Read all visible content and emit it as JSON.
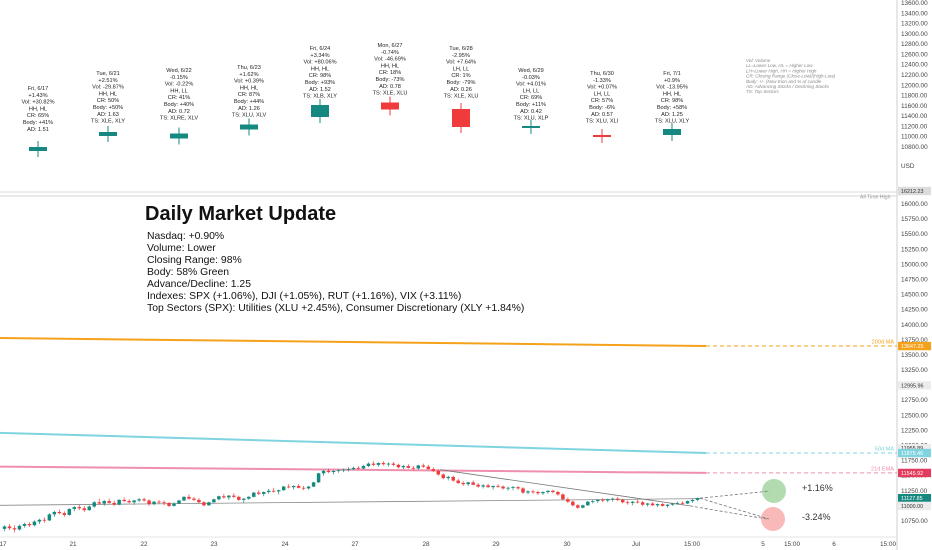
{
  "colors": {
    "up": "#15897f",
    "down": "#ef3b3b",
    "ma200": "#f5a21b",
    "ma50": "#7fd4e0",
    "ema21": "#ef8fae",
    "ath": "#b9b9b9",
    "pct_up_circle": "#9fd39b",
    "pct_down_circle": "#f7a8a8"
  },
  "icons": {
    "note": "none"
  },
  "card_days": [
    {
      "lines": [
        "Fri, 6/17",
        "+1.43%",
        "Vol: +30.82%",
        "HH, HL",
        "CR: 65%",
        "Body: +41%",
        "AD: 1.51"
      ],
      "dir": "up"
    },
    {
      "lines": [
        "Tue, 6/21",
        "+2.51%",
        "Vol: -29.87%",
        "HH, HL",
        "CR: 50%",
        "Body: +50%",
        "AD: 1.63",
        "TS: XLE, XLY"
      ],
      "dir": "up"
    },
    {
      "lines": [
        "Wed, 6/22",
        "-0.15%",
        "Vol: -0.22%",
        "HH, LL",
        "CR: 41%",
        "Body: +40%",
        "AD: 0.72",
        "TS: XLRE, XLV"
      ],
      "dir": "up"
    },
    {
      "lines": [
        "Thu, 6/23",
        "+1.62%",
        "Vol: +0.39%",
        "HH, HL",
        "CR: 87%",
        "Body: +44%",
        "AD: 1.26",
        "TS: XLU, XLV"
      ],
      "dir": "up"
    },
    {
      "lines": [
        "Fri, 6/24",
        "+3.34%",
        "Vol: +80.06%",
        "HH, HL",
        "CR: 98%",
        "Body: +93%",
        "AD: 1.52",
        "TS: XLB, XLY"
      ],
      "dir": "up"
    },
    {
      "lines": [
        "Mon, 6/27",
        "-0.74%",
        "Vol: -46.69%",
        "HH, HL",
        "CR: 18%",
        "Body: -73%",
        "AD: 0.78",
        "TS: XLE, XLU"
      ],
      "dir": "down"
    },
    {
      "lines": [
        "Tue, 6/28",
        "-2.95%",
        "Vol: +7.64%",
        "LH, LL",
        "CR: 1%",
        "Body: -79%",
        "AD: 0.26",
        "TS: XLE, XLU"
      ],
      "dir": "down"
    },
    {
      "lines": [
        "Wed, 6/29",
        "-0.03%",
        "Vol: +4.01%",
        "LH, LL",
        "CR: 69%",
        "Body: +11%",
        "AD: 0.42",
        "TS: XLU, XLP"
      ],
      "dir": "up"
    },
    {
      "lines": [
        "Thu, 6/30",
        "-1.33%",
        "Vol: +0.07%",
        "LH, LL",
        "CR: 57%",
        "Body: -6%",
        "AD: 0.57",
        "TS: XLU, XLI"
      ],
      "dir": "down"
    },
    {
      "lines": [
        "Fri, 7/1",
        "+0.9%",
        "Vol: -13.95%",
        "HH, HL",
        "CR: 98%",
        "Body: +58%",
        "AD: 1.25",
        "TS: XLU, XLY"
      ],
      "dir": "up"
    }
  ],
  "legend_lines": [
    "Vol: Volume",
    "LL=Lower Low, HL = Higher Low",
    "LH=Lower High, HH = Higher High",
    "CR: Closing Range (Close-Low)/(High-Low)",
    "Body: +/- (Now Eion and % of candle",
    "AD: Advancing Stocks / Declining Stocks",
    "TS: Top Sectors"
  ],
  "update": {
    "title": "Daily Market Update",
    "lines": [
      "Nasdaq: +0.90%",
      "Volume: Lower",
      "Closing Range: 98%",
      "Body: 58% Green",
      "Advance/Decline: 1.25",
      "Indexes: SPX (+1.06%), DJI (+1.05%), RUT (+1.16%), VIX (+3.11%)",
      "Top Sectors (SPX): Utilities (XLU +2.45%), Consumer Discretionary (XLY +1.84%)"
    ]
  },
  "ath_label": "All Time High",
  "currency": "USD",
  "ma_labels": {
    "ma200": "200d MA",
    "ma50": "50d MA",
    "ema21": "21d EMA"
  },
  "projections": {
    "up": "+1.16%",
    "down": "-3.24%"
  },
  "chart_data": {
    "type": "line",
    "y_axis_ticks": [
      10750,
      11000,
      11250,
      11500,
      11750,
      12000,
      12250,
      12500,
      12750,
      13000,
      13250,
      13500,
      13750,
      14000,
      14250,
      14500,
      14750,
      15000,
      15250,
      15500,
      15750,
      16000,
      16212.23
    ],
    "y_axis_upper_ticks": [
      10800,
      11000,
      11200,
      11400,
      11600,
      11800,
      12000,
      12200,
      12400,
      12600,
      12800,
      13000,
      13200,
      13400,
      13600
    ],
    "x_axis_labels": [
      "17",
      "21",
      "22",
      "23",
      "24",
      "27",
      "28",
      "29",
      "30",
      "Jul",
      "15:00",
      "5",
      "15:00",
      "6",
      "15:00"
    ],
    "price_tags": [
      {
        "label": "16212.23",
        "value": 16212.23,
        "type": "ath"
      },
      {
        "label": "13647.25",
        "value": 13647.25,
        "type": "ma200"
      },
      {
        "label": "12995.96",
        "value": 12995.96,
        "type": "level"
      },
      {
        "label": "11955.89",
        "value": 11955.89,
        "type": "level"
      },
      {
        "label": "11875.46",
        "value": 11875.46,
        "type": "ma50"
      },
      {
        "label": "11545.92",
        "value": 11545.92,
        "type": "ema21"
      },
      {
        "label": "11127.85",
        "value": 11127.85,
        "type": "close"
      },
      {
        "label": "11000.00",
        "value": 11000.0,
        "type": "level"
      }
    ],
    "ma200": [
      13780,
      13648
    ],
    "ma50": [
      12210,
      11876
    ],
    "ema21": [
      11650,
      11546
    ],
    "ohlc": [
      [
        10620,
        10680,
        10580,
        10660
      ],
      [
        10660,
        10700,
        10600,
        10630
      ],
      [
        10630,
        10680,
        10560,
        10610
      ],
      [
        10610,
        10690,
        10590,
        10670
      ],
      [
        10670,
        10720,
        10640,
        10700
      ],
      [
        10700,
        10730,
        10650,
        10680
      ],
      [
        10680,
        10760,
        10660,
        10740
      ],
      [
        10740,
        10790,
        10700,
        10770
      ],
      [
        10770,
        10810,
        10720,
        10760
      ],
      [
        10760,
        10880,
        10750,
        10860
      ],
      [
        10860,
        10920,
        10820,
        10900
      ],
      [
        10900,
        10940,
        10860,
        10880
      ],
      [
        10880,
        10910,
        10820,
        10850
      ],
      [
        10850,
        10960,
        10840,
        10950
      ],
      [
        10950,
        11000,
        10910,
        10980
      ],
      [
        10980,
        11020,
        10930,
        10960
      ],
      [
        10960,
        11000,
        10900,
        10930
      ],
      [
        10930,
        11010,
        10920,
        10990
      ],
      [
        10990,
        11080,
        10970,
        11060
      ],
      [
        11060,
        11120,
        11020,
        11040
      ],
      [
        11040,
        11100,
        11000,
        11080
      ],
      [
        11080,
        11120,
        11040,
        11050
      ],
      [
        11050,
        11090,
        11000,
        11020
      ],
      [
        11020,
        11110,
        11010,
        11100
      ],
      [
        11100,
        11140,
        11060,
        11080
      ],
      [
        11080,
        11110,
        11040,
        11060
      ],
      [
        11060,
        11100,
        11020,
        11090
      ],
      [
        11090,
        11130,
        11060,
        11110
      ],
      [
        11110,
        11140,
        11070,
        11090
      ],
      [
        11090,
        11110,
        11000,
        11030
      ],
      [
        11030,
        11080,
        11010,
        11070
      ],
      [
        11070,
        11100,
        11040,
        11060
      ],
      [
        11060,
        11090,
        11010,
        11050
      ],
      [
        11050,
        11060,
        10980,
        11000
      ],
      [
        11000,
        11060,
        10990,
        11040
      ],
      [
        11040,
        11100,
        11030,
        11090
      ],
      [
        11090,
        11160,
        11080,
        11150
      ],
      [
        11150,
        11190,
        11100,
        11120
      ],
      [
        11120,
        11150,
        11080,
        11100
      ],
      [
        11100,
        11130,
        11040,
        11060
      ],
      [
        11060,
        11080,
        10990,
        11010
      ],
      [
        11010,
        11070,
        11000,
        11060
      ],
      [
        11060,
        11120,
        11050,
        11110
      ],
      [
        11110,
        11170,
        11090,
        11160
      ],
      [
        11160,
        11200,
        11120,
        11140
      ],
      [
        11140,
        11180,
        11100,
        11170
      ],
      [
        11170,
        11210,
        11130,
        11150
      ],
      [
        11150,
        11170,
        11080,
        11100
      ],
      [
        11100,
        11130,
        11050,
        11120
      ],
      [
        11120,
        11160,
        11100,
        11150
      ],
      [
        11150,
        11230,
        11140,
        11220
      ],
      [
        11220,
        11260,
        11180,
        11200
      ],
      [
        11200,
        11240,
        11160,
        11230
      ],
      [
        11230,
        11280,
        11200,
        11250
      ],
      [
        11250,
        11300,
        11220,
        11240
      ],
      [
        11240,
        11270,
        11190,
        11260
      ],
      [
        11260,
        11330,
        11250,
        11320
      ],
      [
        11320,
        11360,
        11290,
        11310
      ],
      [
        11310,
        11340,
        11270,
        11330
      ],
      [
        11330,
        11360,
        11290,
        11300
      ],
      [
        11300,
        11330,
        11260,
        11290
      ],
      [
        11290,
        11330,
        11270,
        11320
      ],
      [
        11320,
        11400,
        11310,
        11390
      ],
      [
        11390,
        11550,
        11380,
        11540
      ],
      [
        11540,
        11600,
        11500,
        11580
      ],
      [
        11580,
        11620,
        11540,
        11560
      ],
      [
        11560,
        11590,
        11520,
        11580
      ],
      [
        11580,
        11610,
        11550,
        11590
      ],
      [
        11590,
        11620,
        11560,
        11600
      ],
      [
        11600,
        11640,
        11570,
        11610
      ],
      [
        11610,
        11650,
        11590,
        11630
      ],
      [
        11630,
        11660,
        11600,
        11620
      ],
      [
        11620,
        11680,
        11610,
        11660
      ],
      [
        11660,
        11720,
        11640,
        11700
      ],
      [
        11700,
        11740,
        11660,
        11680
      ],
      [
        11680,
        11720,
        11650,
        11710
      ],
      [
        11710,
        11740,
        11670,
        11690
      ],
      [
        11690,
        11720,
        11650,
        11700
      ],
      [
        11700,
        11730,
        11660,
        11680
      ],
      [
        11680,
        11700,
        11620,
        11640
      ],
      [
        11640,
        11680,
        11610,
        11660
      ],
      [
        11660,
        11690,
        11620,
        11630
      ],
      [
        11630,
        11660,
        11590,
        11620
      ],
      [
        11620,
        11680,
        11600,
        11670
      ],
      [
        11670,
        11700,
        11630,
        11650
      ],
      [
        11650,
        11680,
        11600,
        11610
      ],
      [
        11610,
        11640,
        11560,
        11580
      ],
      [
        11580,
        11610,
        11500,
        11520
      ],
      [
        11520,
        11540,
        11440,
        11460
      ],
      [
        11460,
        11500,
        11420,
        11480
      ],
      [
        11480,
        11500,
        11400,
        11420
      ],
      [
        11420,
        11450,
        11360,
        11380
      ],
      [
        11380,
        11410,
        11330,
        11360
      ],
      [
        11360,
        11400,
        11330,
        11390
      ],
      [
        11390,
        11420,
        11340,
        11350
      ],
      [
        11350,
        11380,
        11300,
        11320
      ],
      [
        11320,
        11360,
        11290,
        11340
      ],
      [
        11340,
        11370,
        11300,
        11310
      ],
      [
        11310,
        11340,
        11270,
        11330
      ],
      [
        11330,
        11360,
        11300,
        11320
      ],
      [
        11320,
        11340,
        11270,
        11290
      ],
      [
        11290,
        11320,
        11250,
        11300
      ],
      [
        11300,
        11330,
        11260,
        11310
      ],
      [
        11310,
        11330,
        11270,
        11290
      ],
      [
        11290,
        11310,
        11200,
        11220
      ],
      [
        11220,
        11260,
        11190,
        11240
      ],
      [
        11240,
        11270,
        11200,
        11230
      ],
      [
        11230,
        11250,
        11180,
        11210
      ],
      [
        11210,
        11240,
        11180,
        11230
      ],
      [
        11230,
        11260,
        11200,
        11250
      ],
      [
        11250,
        11270,
        11210,
        11230
      ],
      [
        11230,
        11250,
        11170,
        11190
      ],
      [
        11190,
        11210,
        11100,
        11110
      ],
      [
        11110,
        11140,
        11050,
        11070
      ],
      [
        11070,
        11090,
        10990,
        11010
      ],
      [
        11010,
        11030,
        10950,
        10970
      ],
      [
        10970,
        11020,
        10960,
        11010
      ],
      [
        11010,
        11080,
        11000,
        11070
      ],
      [
        11070,
        11100,
        11040,
        11080
      ],
      [
        11080,
        11110,
        11050,
        11100
      ],
      [
        11100,
        11130,
        11060,
        11090
      ],
      [
        11090,
        11120,
        11060,
        11110
      ],
      [
        11110,
        11140,
        11070,
        11120
      ],
      [
        11120,
        11150,
        11080,
        11100
      ],
      [
        11100,
        11120,
        11040,
        11060
      ],
      [
        11060,
        11090,
        11020,
        11050
      ],
      [
        11050,
        11080,
        11010,
        11070
      ],
      [
        11070,
        11100,
        11040,
        11060
      ],
      [
        11060,
        11080,
        11000,
        11020
      ],
      [
        11020,
        11050,
        10990,
        11040
      ],
      [
        11040,
        11060,
        11000,
        11010
      ],
      [
        11010,
        11040,
        10980,
        11030
      ],
      [
        11030,
        11050,
        10990,
        11000
      ],
      [
        11000,
        11030,
        10970,
        11020
      ],
      [
        11020,
        11050,
        11000,
        11040
      ],
      [
        11040,
        11070,
        11020,
        11050
      ],
      [
        11050,
        11080,
        11020,
        11040
      ],
      [
        11040,
        11090,
        11030,
        11080
      ],
      [
        11080,
        11110,
        11050,
        11100
      ],
      [
        11100,
        11140,
        11080,
        11130
      ]
    ],
    "ath_value": 16212.23
  }
}
